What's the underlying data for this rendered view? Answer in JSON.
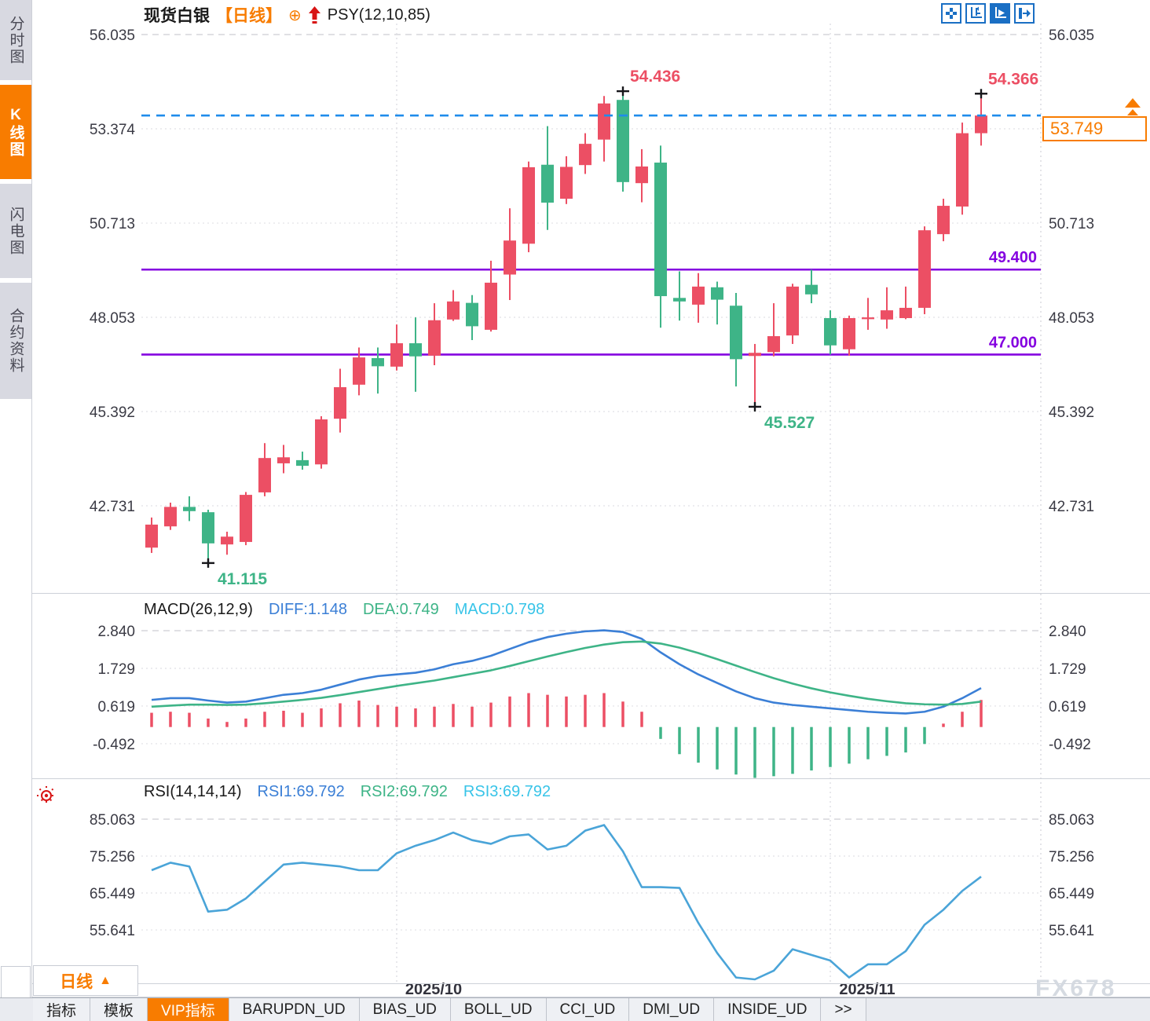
{
  "window": {
    "watermark": "FX678"
  },
  "sidebar": {
    "items": [
      {
        "label": "分时图",
        "active": false
      },
      {
        "label": "K线图",
        "active": true
      },
      {
        "label": "闪电图",
        "active": false
      },
      {
        "label": "合约资料",
        "active": false
      }
    ]
  },
  "header": {
    "symbol": "现货白银",
    "period": "【日线】",
    "overlay_indicator": "PSY(12,10,85)"
  },
  "icons": {
    "add_indicator": "⊕",
    "period_arrow": "▲"
  },
  "period_selector": {
    "label": "日线"
  },
  "bottom_tabs": {
    "items": [
      {
        "label": "指标",
        "active": false
      },
      {
        "label": "模板",
        "active": false
      },
      {
        "label": "VIP指标",
        "active": true
      },
      {
        "label": "BARUPDN_UD",
        "active": false
      },
      {
        "label": "BIAS_UD",
        "active": false
      },
      {
        "label": "BOLL_UD",
        "active": false
      },
      {
        "label": "CCI_UD",
        "active": false
      },
      {
        "label": "DMI_UD",
        "active": false
      },
      {
        "label": "INSIDE_UD",
        "active": false
      },
      {
        "label": ">>",
        "active": false
      }
    ]
  },
  "colors": {
    "up": "#ec4f64",
    "down": "#3eb487",
    "accent_orange": "#f87c00",
    "level_purple": "#8400e0",
    "current_price_blue": "#1f8ceb",
    "diff_blue": "#3b7fd6",
    "dea_green": "#3eb487",
    "macd_cyan": "#38c4e8",
    "rsi_blue": "#4aa4d8",
    "axis_text": "#3a3a44"
  },
  "chart_data": {
    "type": "candlestick",
    "title": "现货白银",
    "timeframe": "日线",
    "price_ticks": [
      "56.035",
      "53.374",
      "50.713",
      "48.053",
      "45.392",
      "42.731"
    ],
    "levels": [
      {
        "label": "49.400",
        "value": 49.4
      },
      {
        "label": "47.000",
        "value": 47.0
      }
    ],
    "current_price": {
      "label": "53.749",
      "value": 53.749
    },
    "month_markers": [
      {
        "index": 13,
        "label": "2025/10"
      },
      {
        "index": 36,
        "label": "2025/11"
      }
    ],
    "annotations": [
      {
        "text": "54.436",
        "index": 25,
        "anchor": "high"
      },
      {
        "text": "54.366",
        "index": 44,
        "anchor": "high"
      },
      {
        "text": "45.527",
        "index": 32,
        "anchor": "low"
      },
      {
        "text": "41.115",
        "index": 3,
        "anchor": "low"
      }
    ],
    "candle_format": "[open, high, low, close]",
    "candles": [
      [
        41.55,
        42.4,
        41.4,
        42.2
      ],
      [
        42.15,
        42.82,
        42.05,
        42.7
      ],
      [
        42.7,
        43.0,
        42.3,
        42.58
      ],
      [
        42.55,
        42.62,
        41.115,
        41.67
      ],
      [
        41.64,
        42.0,
        41.35,
        41.86
      ],
      [
        41.71,
        43.12,
        41.62,
        43.04
      ],
      [
        43.11,
        44.5,
        43.0,
        44.08
      ],
      [
        43.93,
        44.45,
        43.65,
        44.1
      ],
      [
        44.02,
        44.26,
        43.75,
        43.86
      ],
      [
        43.9,
        45.26,
        43.78,
        45.17
      ],
      [
        45.19,
        46.6,
        44.8,
        46.08
      ],
      [
        46.15,
        47.2,
        45.85,
        46.92
      ],
      [
        46.9,
        47.2,
        45.9,
        46.67
      ],
      [
        46.66,
        47.85,
        46.55,
        47.32
      ],
      [
        47.32,
        48.05,
        45.95,
        46.95
      ],
      [
        46.97,
        48.45,
        46.7,
        47.97
      ],
      [
        47.99,
        48.82,
        47.95,
        48.5
      ],
      [
        48.46,
        48.68,
        47.41,
        47.8
      ],
      [
        47.7,
        49.65,
        47.65,
        49.03
      ],
      [
        49.26,
        51.13,
        48.54,
        50.22
      ],
      [
        50.13,
        52.45,
        49.89,
        52.29
      ],
      [
        52.36,
        53.45,
        50.52,
        51.29
      ],
      [
        51.4,
        52.6,
        51.25,
        52.3
      ],
      [
        52.35,
        53.25,
        52.1,
        52.95
      ],
      [
        53.07,
        54.3,
        52.45,
        54.09
      ],
      [
        54.19,
        54.436,
        51.6,
        51.87
      ],
      [
        51.84,
        52.8,
        51.3,
        52.31
      ],
      [
        52.42,
        52.9,
        47.76,
        48.65
      ],
      [
        48.6,
        49.35,
        47.96,
        48.5
      ],
      [
        48.41,
        49.3,
        47.9,
        48.92
      ],
      [
        48.9,
        49.06,
        47.85,
        48.55
      ],
      [
        48.38,
        48.74,
        46.1,
        46.87
      ],
      [
        46.96,
        47.3,
        45.527,
        47.05
      ],
      [
        47.07,
        48.45,
        46.95,
        47.52
      ],
      [
        47.54,
        49.0,
        47.3,
        48.92
      ],
      [
        48.97,
        49.4,
        48.45,
        48.7
      ],
      [
        48.03,
        48.25,
        47.0,
        47.26
      ],
      [
        47.15,
        48.1,
        46.97,
        48.03
      ],
      [
        48.0,
        48.6,
        47.7,
        48.05
      ],
      [
        47.99,
        48.9,
        47.73,
        48.25
      ],
      [
        48.03,
        48.92,
        48.0,
        48.32
      ],
      [
        48.32,
        50.62,
        48.14,
        50.51
      ],
      [
        50.4,
        51.4,
        50.2,
        51.2
      ],
      [
        51.18,
        53.55,
        50.95,
        53.25
      ],
      [
        53.25,
        54.366,
        52.9,
        53.749
      ]
    ],
    "macd": {
      "title": "MACD(26,12,9)",
      "diff_label": "DIFF:1.148",
      "dea_label": "DEA:0.749",
      "macd_label": "MACD:0.798",
      "ticks": [
        "2.840",
        "1.729",
        "0.619",
        "-0.492"
      ],
      "diff": [
        0.8,
        0.85,
        0.85,
        0.78,
        0.72,
        0.75,
        0.85,
        0.95,
        1.0,
        1.1,
        1.25,
        1.4,
        1.5,
        1.55,
        1.6,
        1.7,
        1.85,
        1.95,
        2.1,
        2.3,
        2.5,
        2.65,
        2.75,
        2.82,
        2.85,
        2.8,
        2.6,
        2.2,
        1.85,
        1.55,
        1.3,
        1.05,
        0.85,
        0.72,
        0.65,
        0.6,
        0.55,
        0.5,
        0.45,
        0.42,
        0.4,
        0.45,
        0.6,
        0.85,
        1.148
      ],
      "dea": [
        0.6,
        0.63,
        0.66,
        0.66,
        0.65,
        0.66,
        0.7,
        0.75,
        0.8,
        0.86,
        0.94,
        1.03,
        1.12,
        1.21,
        1.29,
        1.37,
        1.47,
        1.57,
        1.67,
        1.8,
        1.94,
        2.08,
        2.21,
        2.33,
        2.43,
        2.5,
        2.52,
        2.46,
        2.34,
        2.18,
        2.0,
        1.81,
        1.62,
        1.44,
        1.28,
        1.14,
        1.02,
        0.92,
        0.83,
        0.76,
        0.7,
        0.67,
        0.66,
        0.68,
        0.749
      ],
      "hist": [
        0.42,
        0.45,
        0.42,
        0.25,
        0.15,
        0.25,
        0.45,
        0.48,
        0.42,
        0.55,
        0.7,
        0.78,
        0.65,
        0.6,
        0.55,
        0.6,
        0.68,
        0.6,
        0.72,
        0.9,
        1.0,
        0.95,
        0.9,
        0.95,
        1.0,
        0.75,
        0.45,
        -0.35,
        -0.8,
        -1.05,
        -1.25,
        -1.4,
        -1.5,
        -1.45,
        -1.38,
        -1.28,
        -1.18,
        -1.08,
        -0.95,
        -0.85,
        -0.75,
        -0.5,
        0.1,
        0.45,
        0.798
      ]
    },
    "rsi": {
      "title": "RSI(14,14,14)",
      "rsi1_label": "RSI1:69.792",
      "rsi2_label": "RSI2:69.792",
      "rsi3_label": "RSI3:69.792",
      "ticks": [
        "85.063",
        "75.256",
        "65.449",
        "55.641"
      ],
      "values": [
        71.5,
        73.5,
        72.5,
        60.5,
        61.0,
        64.0,
        68.5,
        73.0,
        73.5,
        73.0,
        72.5,
        71.5,
        71.5,
        76.0,
        78.0,
        79.5,
        81.5,
        79.5,
        78.5,
        80.5,
        81.0,
        77.0,
        78.0,
        82.0,
        83.5,
        76.5,
        67.0,
        67.0,
        66.8,
        57.5,
        49.5,
        43.0,
        42.5,
        44.8,
        50.5,
        49.0,
        47.5,
        43.0,
        46.5,
        46.5,
        50.0,
        57.0,
        61.0,
        66.0,
        69.792
      ]
    }
  }
}
